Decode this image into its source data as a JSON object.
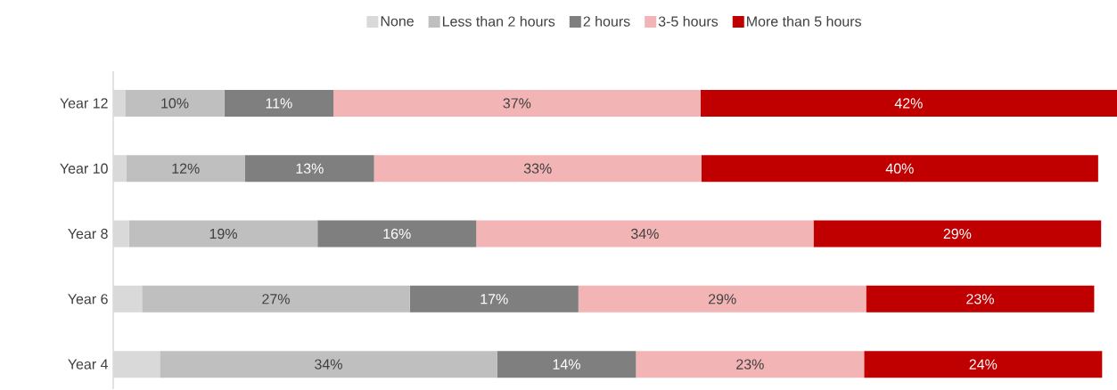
{
  "chart_data": {
    "type": "bar",
    "orientation": "horizontal",
    "stacked": true,
    "categories": [
      "Year 12",
      "Year 10",
      "Year 8",
      "Year 6",
      "Year 4"
    ],
    "series": [
      {
        "name": "None",
        "color": "#d9d9d9",
        "values": [
          1.2,
          1.3,
          1.6,
          2.9,
          4.7
        ],
        "value_labels": [
          null,
          null,
          null,
          null,
          null
        ]
      },
      {
        "name": "Less than 2 hours",
        "color": "#bfbfbf",
        "values": [
          10,
          12,
          19,
          27,
          34
        ],
        "value_labels": [
          "10%",
          "12%",
          "19%",
          "27%",
          "34%"
        ]
      },
      {
        "name": "2 hours",
        "color": "#7f7f7f",
        "values": [
          11,
          13,
          16,
          17,
          14
        ],
        "value_labels": [
          "11%",
          "13%",
          "16%",
          "17%",
          "14%"
        ]
      },
      {
        "name": "3-5 hours",
        "color": "#f2b4b4",
        "values": [
          37,
          33,
          34,
          29,
          23
        ],
        "value_labels": [
          "37%",
          "33%",
          "34%",
          "29%",
          "23%"
        ]
      },
      {
        "name": "More than 5 hours",
        "color": "#c00000",
        "values": [
          42,
          40,
          29,
          23,
          24
        ],
        "value_labels": [
          "42%",
          "40%",
          "29%",
          "23%",
          "24%"
        ]
      }
    ],
    "xlim": [
      0,
      101.2
    ],
    "tick_labels": "y",
    "legend": "top"
  }
}
